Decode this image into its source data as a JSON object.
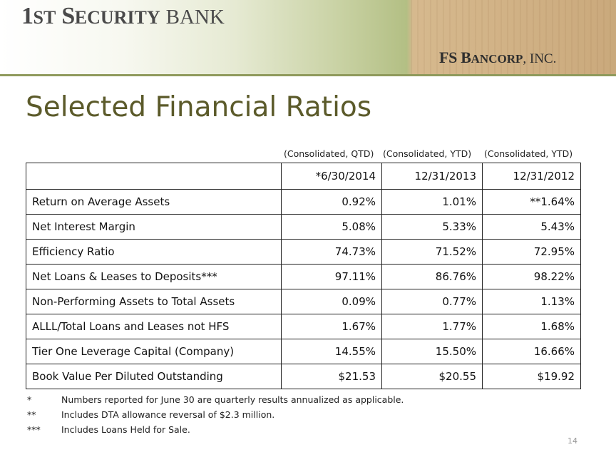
{
  "header": {
    "bank_logo": {
      "first": "1",
      "st": "ST",
      "sp": " ",
      "s": "S",
      "ecurity": "ECURITY",
      "bank": "BANK"
    },
    "corp_logo": {
      "f": "FS ",
      "b": "B",
      "ancorp": "ANCORP",
      "inc": ", INC."
    }
  },
  "title": "Selected Financial Ratios",
  "column_notes": [
    "(Consolidated, QTD)",
    "(Consolidated, YTD)",
    "(Consolidated, YTD)"
  ],
  "table": {
    "headers": [
      "",
      "*6/30/2014",
      "12/31/2013",
      "12/31/2012"
    ],
    "rows": [
      [
        "Return on Average Assets",
        "0.92%",
        "1.01%",
        "**1.64%"
      ],
      [
        "Net Interest Margin",
        "5.08%",
        "5.33%",
        "5.43%"
      ],
      [
        "Efficiency Ratio",
        "74.73%",
        "71.52%",
        "72.95%"
      ],
      [
        "Net Loans & Leases to Deposits***",
        "97.11%",
        "86.76%",
        "98.22%"
      ],
      [
        "Non-Performing Assets to Total Assets",
        "0.09%",
        "0.77%",
        "1.13%"
      ],
      [
        "ALLL/Total Loans and Leases not HFS",
        "1.67%",
        "1.77%",
        "1.68%"
      ],
      [
        "Tier One Leverage Capital (Company)",
        "14.55%",
        "15.50%",
        "16.66%"
      ],
      [
        "Book Value Per Diluted Outstanding",
        "$21.53",
        "$20.55",
        "$19.92"
      ]
    ]
  },
  "footnotes": [
    {
      "mark": "*",
      "text": "Numbers reported for June 30 are quarterly results annualized as applicable."
    },
    {
      "mark": "**",
      "text": "Includes DTA allowance reversal of $2.3 million."
    },
    {
      "mark": "***",
      "text": "Includes Loans Held for Sale."
    }
  ],
  "page_number": "14",
  "colors": {
    "title": "#5b5a2a",
    "banner_rule": "#8f9a5c"
  }
}
